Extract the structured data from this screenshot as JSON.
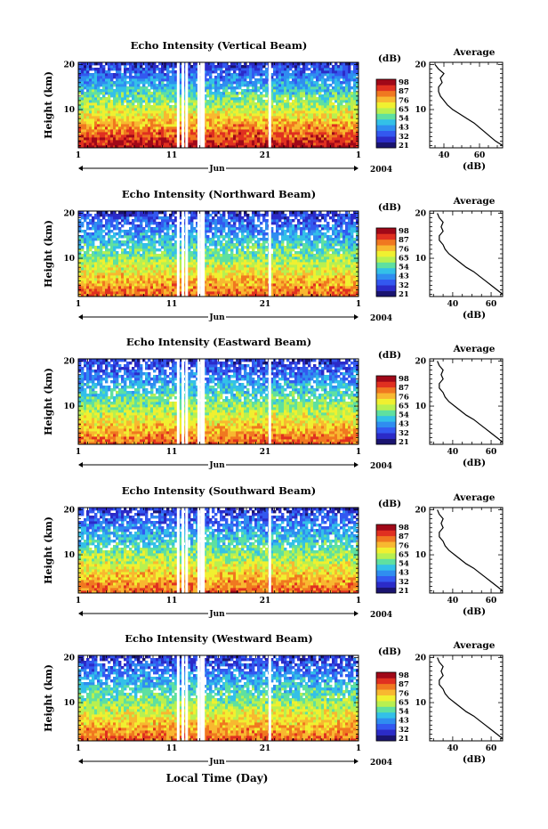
{
  "figure": {
    "xlabel": "Local Time (Day)",
    "year_label": "2004",
    "month_label": "Jun",
    "ylabel": "Height (km)",
    "cbar_unit": "(dB)",
    "avg_title": "Average",
    "avg_xlabel": "(dB)"
  },
  "colors": {
    "colormap": [
      "#1a1470",
      "#2b2bc8",
      "#3358f0",
      "#2f8df0",
      "#33c0e8",
      "#5fe0a0",
      "#b8f050",
      "#f0f030",
      "#f8b830",
      "#f07820",
      "#e03020",
      "#a00818"
    ]
  },
  "chart_data": [
    {
      "type": "heatmap",
      "title": "Echo Intensity (Vertical Beam)",
      "x_ticks": [
        "1",
        "11",
        "21",
        "1"
      ],
      "x_range_days": [
        1,
        31
      ],
      "y_ticks": [
        "20",
        "10"
      ],
      "ylim_km": [
        1.5,
        20.5
      ],
      "colorbar_ticks": [
        "98",
        "87",
        "76",
        "65",
        "54",
        "43",
        "32",
        "21"
      ],
      "data_gaps_day": [
        11.7,
        12.2,
        12.6,
        13.9,
        14.2,
        14.4,
        21.5
      ],
      "average_profile": {
        "xlim_db": [
          32,
          73
        ],
        "x_ticks": [
          "40",
          "60"
        ],
        "y_ticks": [
          "20",
          "10"
        ],
        "height_km": [
          2,
          3,
          4,
          5,
          6,
          7,
          8,
          9,
          10,
          11,
          12,
          13,
          14,
          15,
          16,
          17,
          18,
          19,
          20
        ],
        "db": [
          73,
          69,
          66,
          63,
          60,
          57,
          53,
          49,
          45,
          42,
          40,
          38,
          37,
          37,
          39,
          38,
          40,
          37,
          35
        ]
      }
    },
    {
      "type": "heatmap",
      "title": "Echo Intensity (Northward Beam)",
      "x_ticks": [
        "1",
        "11",
        "21",
        "1"
      ],
      "x_range_days": [
        1,
        31
      ],
      "y_ticks": [
        "20",
        "10"
      ],
      "ylim_km": [
        1.5,
        20.5
      ],
      "colorbar_ticks": [
        "98",
        "87",
        "76",
        "65",
        "54",
        "43",
        "32",
        "21"
      ],
      "data_gaps_day": [
        11.7,
        12.2,
        12.6,
        13.9,
        14.2,
        14.4,
        21.5
      ],
      "average_profile": {
        "xlim_db": [
          28,
          66
        ],
        "x_ticks": [
          "40",
          "60"
        ],
        "y_ticks": [
          "20",
          "10"
        ],
        "height_km": [
          2,
          3,
          4,
          5,
          6,
          7,
          8,
          9,
          10,
          11,
          12,
          13,
          14,
          15,
          16,
          17,
          18,
          19,
          20
        ],
        "db": [
          66,
          63,
          60,
          57,
          54,
          51,
          47,
          44,
          41,
          38,
          36,
          35,
          33,
          33,
          35,
          34,
          35,
          33,
          32
        ]
      }
    },
    {
      "type": "heatmap",
      "title": "Echo Intensity (Eastward Beam)",
      "x_ticks": [
        "1",
        "11",
        "21",
        "1"
      ],
      "x_range_days": [
        1,
        31
      ],
      "y_ticks": [
        "20",
        "10"
      ],
      "ylim_km": [
        1.5,
        20.5
      ],
      "colorbar_ticks": [
        "98",
        "87",
        "76",
        "65",
        "54",
        "43",
        "32",
        "21"
      ],
      "data_gaps_day": [
        11.7,
        12.2,
        12.6,
        13.9,
        14.2,
        14.4,
        21.5
      ],
      "average_profile": {
        "xlim_db": [
          28,
          66
        ],
        "x_ticks": [
          "40",
          "60"
        ],
        "y_ticks": [
          "20",
          "10"
        ],
        "height_km": [
          2,
          3,
          4,
          5,
          6,
          7,
          8,
          9,
          10,
          11,
          12,
          13,
          14,
          15,
          16,
          17,
          18,
          19,
          20
        ],
        "db": [
          66,
          63,
          60,
          57,
          54,
          51,
          47,
          44,
          41,
          38,
          36,
          35,
          33,
          33,
          35,
          34,
          35,
          33,
          32
        ]
      }
    },
    {
      "type": "heatmap",
      "title": "Echo Intensity (Southward Beam)",
      "x_ticks": [
        "1",
        "11",
        "21",
        "1"
      ],
      "x_range_days": [
        1,
        31
      ],
      "y_ticks": [
        "20",
        "10"
      ],
      "ylim_km": [
        1.5,
        20.5
      ],
      "colorbar_ticks": [
        "98",
        "87",
        "76",
        "65",
        "54",
        "43",
        "32",
        "21"
      ],
      "data_gaps_day": [
        11.7,
        12.2,
        12.6,
        13.9,
        14.2,
        14.4,
        21.5
      ],
      "average_profile": {
        "xlim_db": [
          28,
          66
        ],
        "x_ticks": [
          "40",
          "60"
        ],
        "y_ticks": [
          "20",
          "10"
        ],
        "height_km": [
          2,
          3,
          4,
          5,
          6,
          7,
          8,
          9,
          10,
          11,
          12,
          13,
          14,
          15,
          16,
          17,
          18,
          19,
          20
        ],
        "db": [
          66,
          63,
          60,
          57,
          54,
          51,
          47,
          44,
          41,
          38,
          36,
          35,
          33,
          33,
          35,
          34,
          35,
          33,
          32
        ]
      }
    },
    {
      "type": "heatmap",
      "title": "Echo Intensity (Westward Beam)",
      "x_ticks": [
        "1",
        "11",
        "21",
        "1"
      ],
      "x_range_days": [
        1,
        31
      ],
      "y_ticks": [
        "20",
        "10"
      ],
      "ylim_km": [
        1.5,
        20.5
      ],
      "colorbar_ticks": [
        "98",
        "87",
        "76",
        "65",
        "54",
        "43",
        "32",
        "21"
      ],
      "data_gaps_day": [
        11.7,
        12.2,
        12.6,
        13.9,
        14.2,
        14.4,
        21.5
      ],
      "average_profile": {
        "xlim_db": [
          28,
          66
        ],
        "x_ticks": [
          "40",
          "60"
        ],
        "y_ticks": [
          "20",
          "10"
        ],
        "height_km": [
          2,
          3,
          4,
          5,
          6,
          7,
          8,
          9,
          10,
          11,
          12,
          13,
          14,
          15,
          16,
          17,
          18,
          19,
          20
        ],
        "db": [
          66,
          63,
          60,
          57,
          54,
          51,
          47,
          44,
          41,
          38,
          36,
          35,
          33,
          33,
          35,
          34,
          35,
          33,
          32
        ]
      }
    }
  ]
}
